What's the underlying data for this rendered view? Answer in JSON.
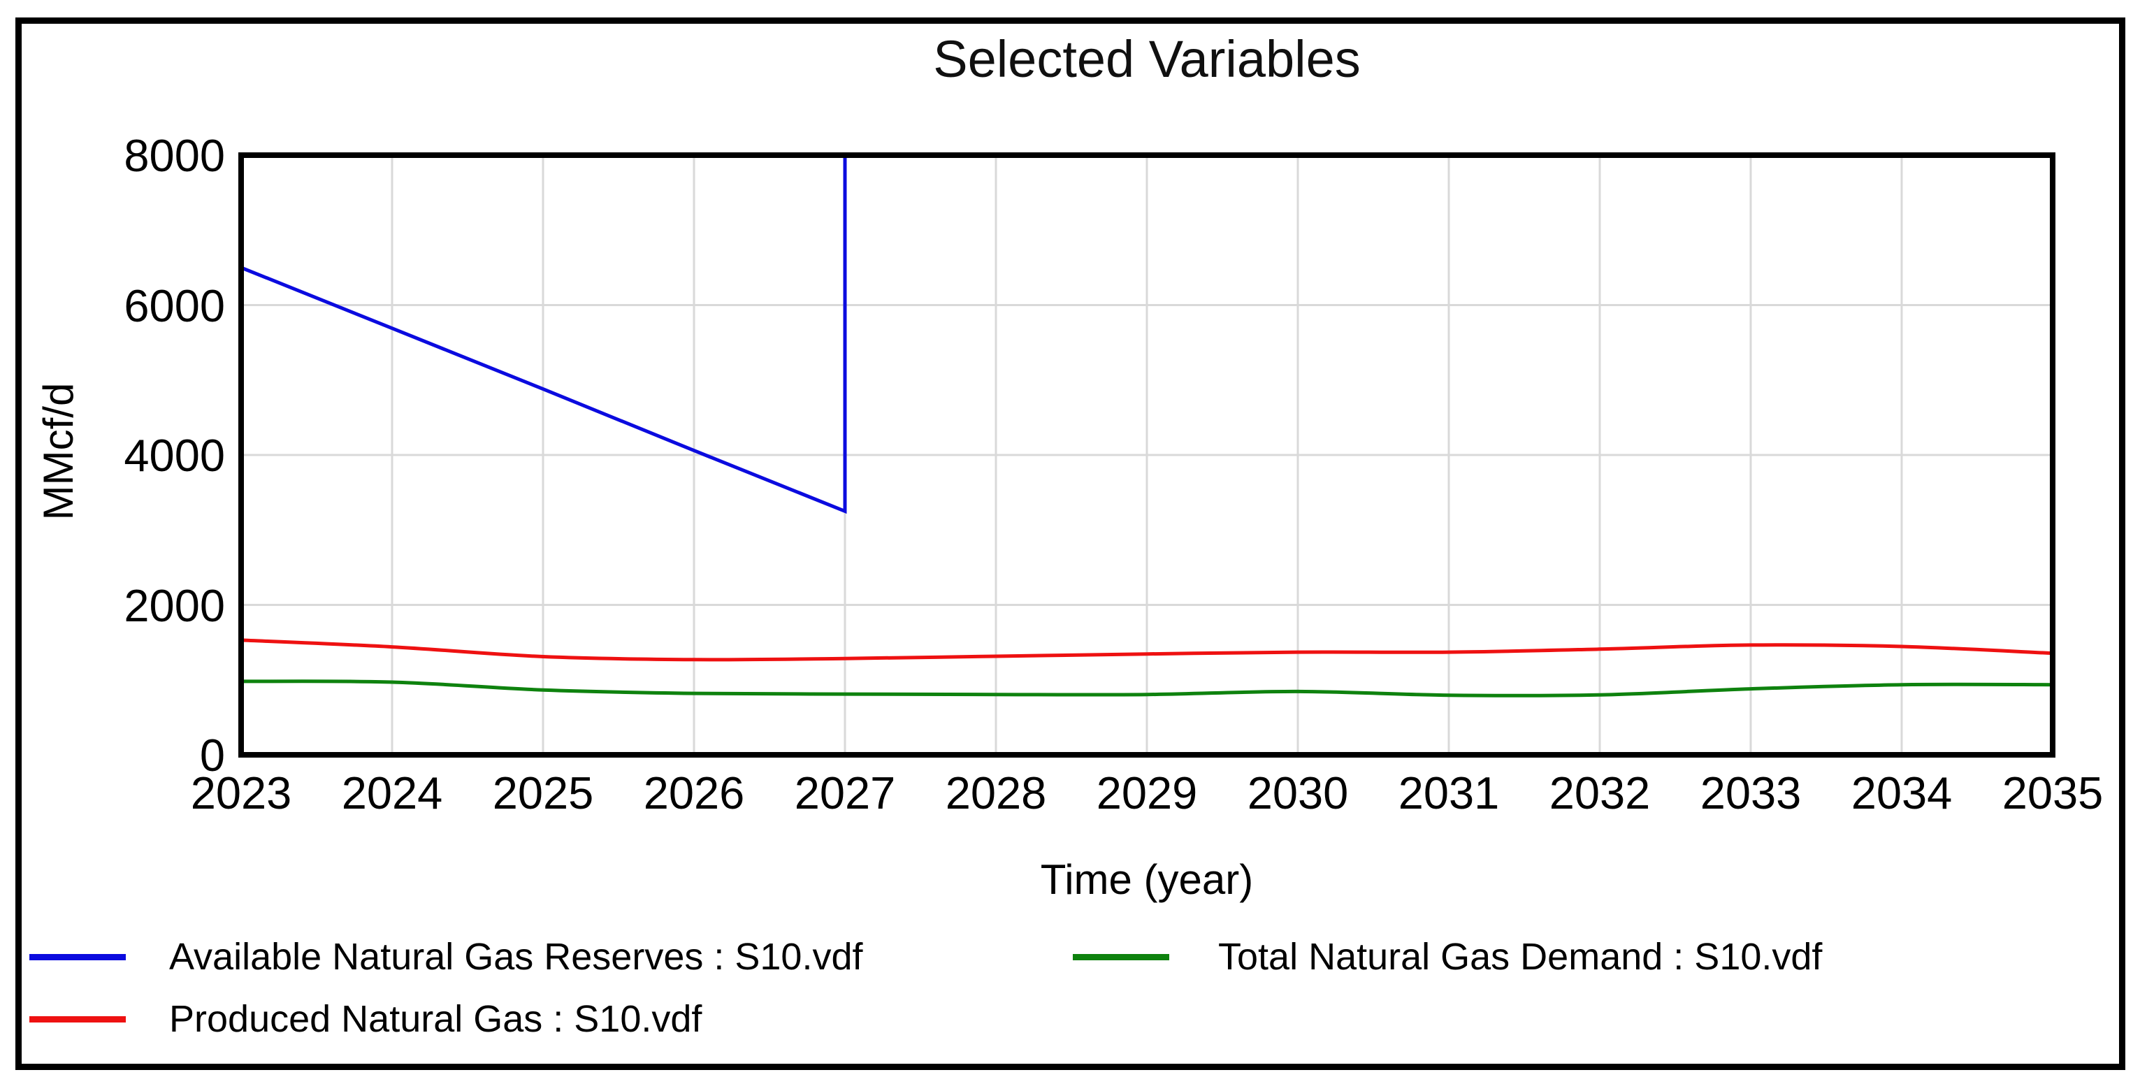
{
  "window": {
    "background_color": "#ffffff",
    "frame_color": "#000000"
  },
  "chart_data": {
    "type": "line",
    "title": "Selected Variables",
    "xlabel": "Time (year)",
    "ylabel": "MMcf/d",
    "xlim": [
      2023,
      2035
    ],
    "ylim": [
      0,
      8000
    ],
    "x_ticks": [
      "2023",
      "2024",
      "2025",
      "2026",
      "2027",
      "2028",
      "2029",
      "2030",
      "2031",
      "2032",
      "2033",
      "2034",
      "2035"
    ],
    "y_ticks": [
      "0",
      "2000",
      "4000",
      "6000",
      "8000"
    ],
    "grid": true,
    "gridline_color": "#d9d9d9",
    "plot_border_color": "#000000",
    "legend_position": "bottom-left, two columns",
    "series": [
      {
        "name": "Available Natural Gas Reserves : S10.vdf",
        "color": "#0b0bdf",
        "smooth": false,
        "note": "declines linearly from ~6500 in 2023 to ~3250 at 2027, then jumps vertically off-scale above 8000 at 2027 (no visible line after 2027)",
        "points": [
          [
            2023,
            6500
          ],
          [
            2024,
            5690
          ],
          [
            2025,
            4880
          ],
          [
            2026,
            4060
          ],
          [
            2027,
            3250
          ],
          [
            2027,
            8000
          ]
        ]
      },
      {
        "name": "Produced Natural Gas : S10.vdf",
        "color": "#ee1111",
        "smooth": true,
        "points": [
          [
            2023,
            1530
          ],
          [
            2024,
            1440
          ],
          [
            2025,
            1310
          ],
          [
            2026,
            1270
          ],
          [
            2027,
            1285
          ],
          [
            2028,
            1315
          ],
          [
            2029,
            1345
          ],
          [
            2030,
            1370
          ],
          [
            2031,
            1370
          ],
          [
            2032,
            1410
          ],
          [
            2033,
            1465
          ],
          [
            2034,
            1445
          ],
          [
            2035,
            1355
          ]
        ]
      },
      {
        "name": "Total Natural Gas Demand : S10.vdf",
        "color": "#0e820e",
        "smooth": true,
        "points": [
          [
            2023,
            980
          ],
          [
            2024,
            970
          ],
          [
            2025,
            865
          ],
          [
            2026,
            820
          ],
          [
            2027,
            810
          ],
          [
            2028,
            805
          ],
          [
            2029,
            805
          ],
          [
            2030,
            845
          ],
          [
            2031,
            795
          ],
          [
            2032,
            800
          ],
          [
            2033,
            880
          ],
          [
            2034,
            935
          ],
          [
            2035,
            935
          ]
        ]
      }
    ]
  }
}
